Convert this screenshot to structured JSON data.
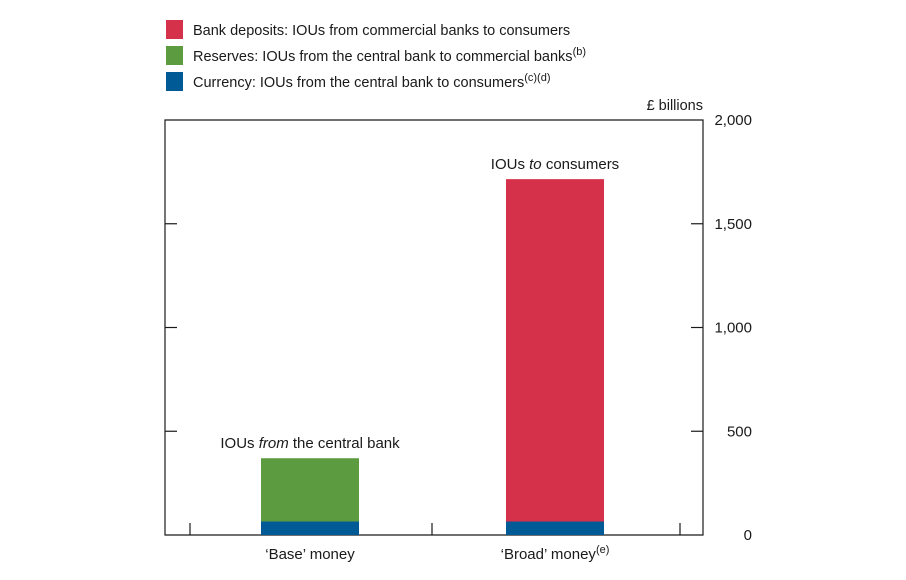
{
  "chart_data": {
    "type": "bar",
    "stacked": true,
    "categories": [
      "‘Base’ money",
      "‘Broad’ money"
    ],
    "category_superscripts": [
      "",
      "(e)"
    ],
    "series": [
      {
        "name": "Currency:  IOUs from the central bank to consumers",
        "superscript": "(c)(d)",
        "color": "#005a96",
        "values": [
          65,
          65
        ]
      },
      {
        "name": "Reserves:  IOUs from the central bank to commercial banks",
        "superscript": "(b)",
        "color": "#5c9b40",
        "values": [
          305,
          0
        ]
      },
      {
        "name": "Bank deposits:  IOUs from commercial banks to consumers",
        "superscript": "",
        "color": "#d6314a",
        "values": [
          0,
          1650
        ]
      }
    ],
    "legend_order": [
      2,
      1,
      0
    ],
    "ylabel": "£ billions",
    "ylim": [
      0,
      2000
    ],
    "yticks": [
      "0",
      "500",
      "1,000",
      "1,500",
      "2,000"
    ],
    "ytick_values": [
      0,
      500,
      1000,
      1500,
      2000
    ],
    "annotations": [
      {
        "category": 0,
        "parts": [
          {
            "text": "IOUs ",
            "italic": false
          },
          {
            "text": "from",
            "italic": true
          },
          {
            "text": " the central bank",
            "italic": false
          }
        ]
      },
      {
        "category": 1,
        "parts": [
          {
            "text": "IOUs ",
            "italic": false
          },
          {
            "text": "to",
            "italic": true
          },
          {
            "text": " consumers",
            "italic": false
          }
        ]
      }
    ],
    "grid": false,
    "legend_position": "top-left"
  }
}
